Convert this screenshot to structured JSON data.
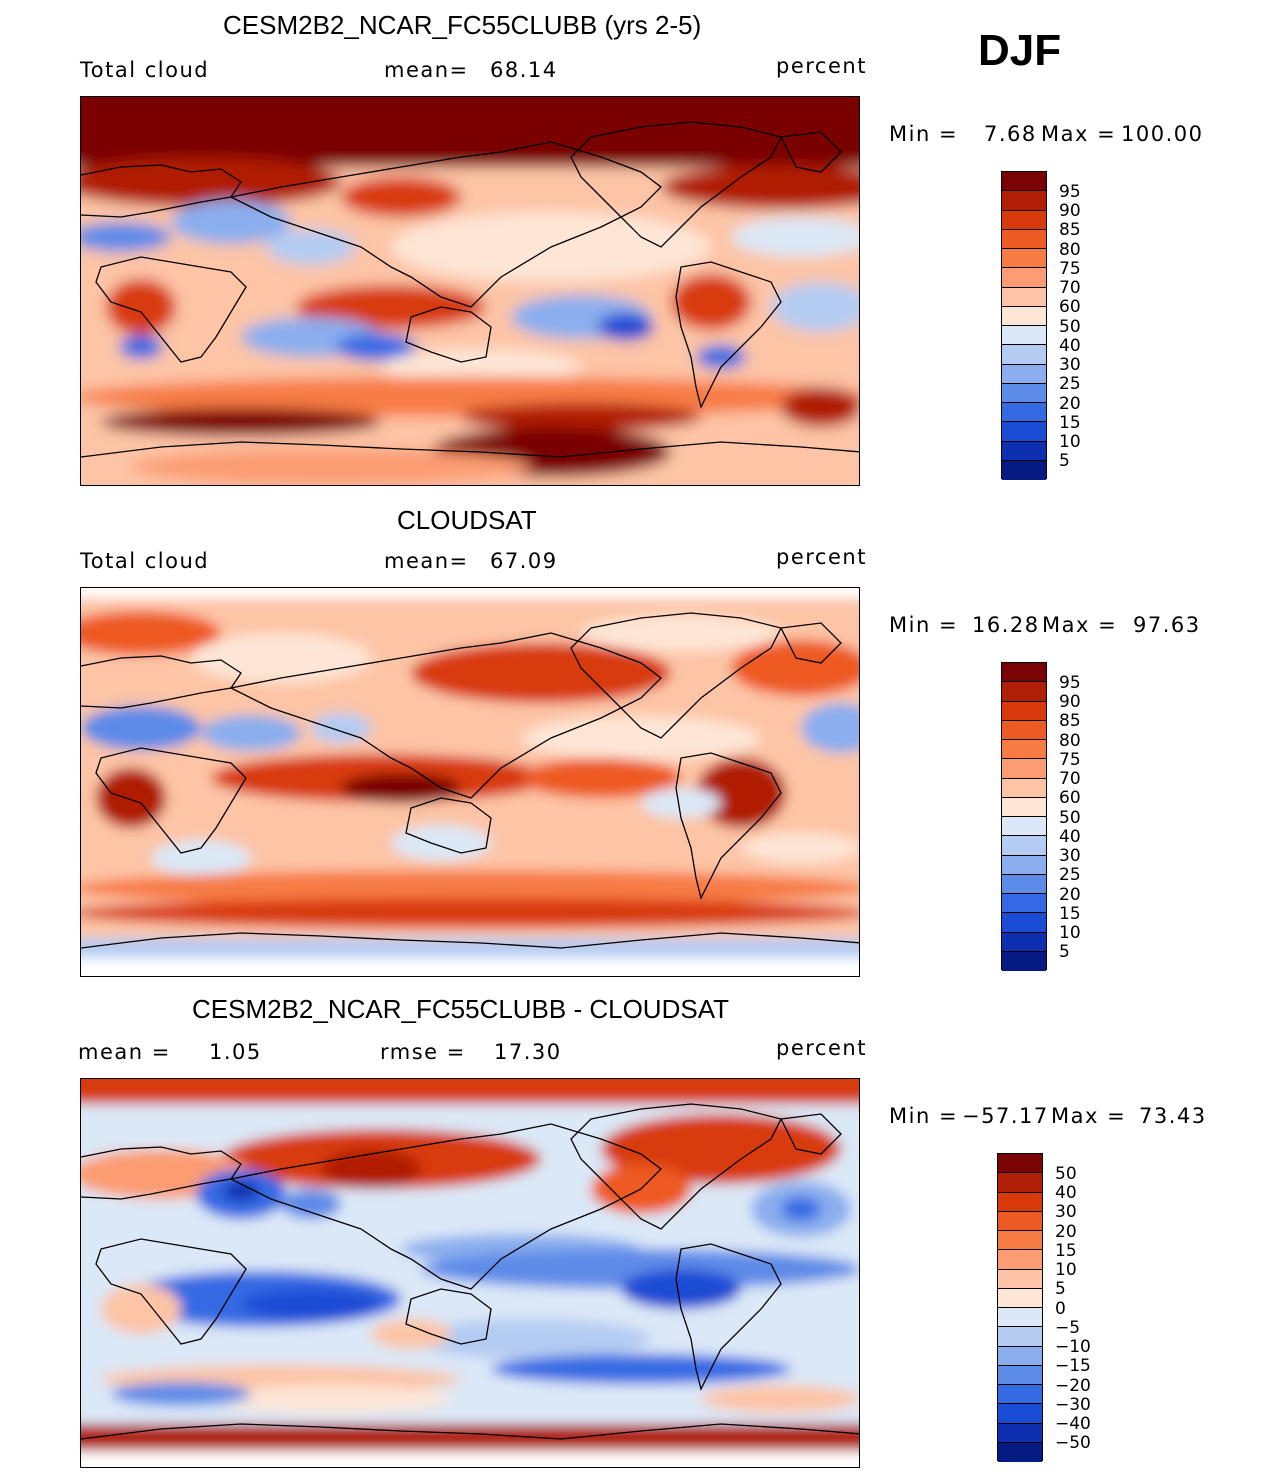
{
  "season": "DJF",
  "panels": [
    {
      "key": "model",
      "title": "CESM2B2_NCAR_FC55CLUBB (yrs 2-5)",
      "left_label": "Total cloud",
      "center_label": "mean=",
      "center_value": "68.14",
      "units": "percent",
      "min_label": "Min =",
      "min_value": "7.68",
      "max_label": "Max =",
      "max_value": "100.00",
      "ticks": [
        "95",
        "90",
        "85",
        "80",
        "75",
        "70",
        "60",
        "50",
        "40",
        "30",
        "25",
        "20",
        "15",
        "10",
        "5"
      ]
    },
    {
      "key": "obs",
      "title": "CLOUDSAT",
      "left_label": "Total cloud",
      "center_label": "mean=",
      "center_value": "67.09",
      "units": "percent",
      "min_label": "Min =",
      "min_value": "16.28",
      "max_label": "Max =",
      "max_value": "97.63",
      "ticks": [
        "95",
        "90",
        "85",
        "80",
        "75",
        "70",
        "60",
        "50",
        "40",
        "30",
        "25",
        "20",
        "15",
        "10",
        "5"
      ]
    },
    {
      "key": "diff",
      "title": "CESM2B2_NCAR_FC55CLUBB - CLOUDSAT",
      "left_label": "mean =",
      "left_value": "1.05",
      "center_label": "rmse =",
      "center_value": "17.30",
      "units": "percent",
      "min_label": "Min =",
      "min_value": "−57.17",
      "max_label": "Max =",
      "max_value": "73.43",
      "ticks": [
        "50",
        "40",
        "30",
        "20",
        "15",
        "10",
        "5",
        "0",
        "−5",
        "−10",
        "−15",
        "−20",
        "−30",
        "−40",
        "−50"
      ]
    }
  ],
  "colors": {
    "palette": [
      "#7a0403",
      "#b01e05",
      "#d83a0c",
      "#ee5a24",
      "#f77c44",
      "#fb9c72",
      "#fdc4a6",
      "#fde6d6",
      "#dbe8f7",
      "#b4ccf2",
      "#8aaeee",
      "#5d8be8",
      "#356ae4",
      "#1b4cd4",
      "#0e2fb0",
      "#061a84"
    ],
    "border": "#000000"
  }
}
